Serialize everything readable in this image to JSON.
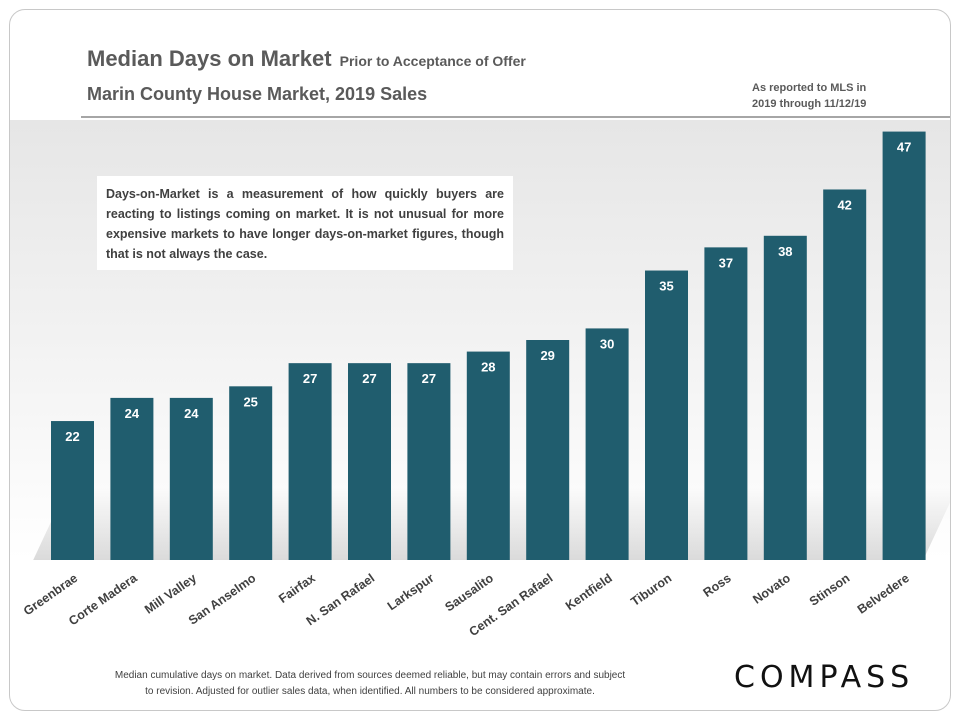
{
  "header": {
    "title": "Median Days on Market",
    "title_suffix": "Prior to Acceptance of Offer",
    "subtitle": "Marin County House Market, 2019 Sales",
    "reported_line1": "As reported to MLS in",
    "reported_line2": "2019 through 11/12/19"
  },
  "note": "Days-on-Market is a measurement of how quickly buyers are reacting to listings coming on market. It is not unusual for more expensive markets to have longer days-on-market figures, though that is not always the case.",
  "footer": {
    "line1": "Median cumulative days on market. Data derived from sources deemed reliable, but may contain errors and subject",
    "line2": "to revision. Adjusted for outlier sales data, when identified. All numbers to be considered approximate."
  },
  "logo": "COMPASS",
  "colors": {
    "bar": "#205d6e",
    "label": "#ffffff",
    "axis_text": "#404040"
  },
  "chart_data": {
    "type": "bar",
    "title": "Median Days on Market",
    "categories": [
      "Greenbrae",
      "Corte Madera",
      "Mill Valley",
      "San Anselmo",
      "Fairfax",
      "N. San Rafael",
      "Larkspur",
      "Sausalito",
      "Cent. San Rafael",
      "Kentfield",
      "Tiburon",
      "Ross",
      "Novato",
      "Stinson",
      "Belvedere"
    ],
    "values": [
      22,
      24,
      24,
      25,
      27,
      27,
      27,
      28,
      29,
      30,
      35,
      37,
      38,
      42,
      47
    ],
    "data_labels": true,
    "ylim": [
      10,
      48
    ],
    "grid": false,
    "legend": "none"
  }
}
